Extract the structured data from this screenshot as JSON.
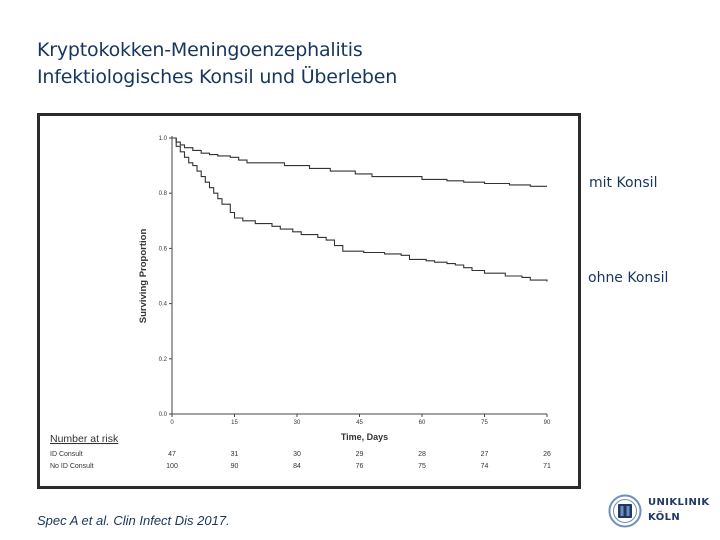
{
  "slide": {
    "title_line1": "Kryptokokken-Meningoenzephalitis",
    "title_line2": "Infektiologisches Konsil und Überleben",
    "label_with_consult": "mit Konsil",
    "label_without_consult": "ohne Konsil",
    "citation": "Spec A et al. Clin Infect Dis 2017.",
    "logo": {
      "line1": "UNIKLINIK",
      "line2": "KÖLN",
      "colors": {
        "primary": "#1f3864",
        "secondary": "#6f8fb8"
      }
    }
  },
  "chart_data": {
    "type": "line",
    "xlabel": "Time, Days",
    "ylabel": "Surviving Proportion",
    "xlim": [
      0,
      90
    ],
    "ylim": [
      0,
      1.0
    ],
    "x_ticks": [
      "0",
      "15",
      "30",
      "45",
      "60",
      "75",
      "90"
    ],
    "y_ticks": [
      "0.0",
      "0.2",
      "0.4",
      "0.6",
      "0.8",
      "1.0"
    ],
    "grid": false,
    "series": [
      {
        "name": "ID Consult",
        "color": "#333333",
        "step": true,
        "x": [
          0,
          1,
          2,
          3,
          5,
          7,
          9,
          11,
          14,
          16,
          18,
          22,
          27,
          33,
          38,
          44,
          48,
          54,
          60,
          66,
          70,
          75,
          81,
          86,
          90
        ],
        "y": [
          1.0,
          0.985,
          0.975,
          0.965,
          0.955,
          0.945,
          0.94,
          0.935,
          0.93,
          0.92,
          0.91,
          0.91,
          0.9,
          0.89,
          0.88,
          0.87,
          0.86,
          0.86,
          0.85,
          0.845,
          0.84,
          0.835,
          0.83,
          0.825,
          0.825
        ]
      },
      {
        "name": "No ID Consult",
        "color": "#333333",
        "step": true,
        "x": [
          0,
          1,
          2,
          3,
          4,
          5,
          6,
          7,
          8,
          9,
          10,
          11,
          12,
          14,
          15,
          17,
          20,
          24,
          26,
          29,
          31,
          35,
          37,
          39,
          41,
          46,
          51,
          55,
          57,
          61,
          63,
          66,
          68,
          70,
          72,
          75,
          80,
          84,
          86,
          90
        ],
        "y": [
          1.0,
          0.97,
          0.95,
          0.93,
          0.91,
          0.9,
          0.88,
          0.86,
          0.84,
          0.82,
          0.8,
          0.78,
          0.76,
          0.73,
          0.71,
          0.7,
          0.69,
          0.68,
          0.67,
          0.66,
          0.65,
          0.64,
          0.63,
          0.61,
          0.59,
          0.585,
          0.58,
          0.575,
          0.56,
          0.555,
          0.55,
          0.545,
          0.54,
          0.53,
          0.52,
          0.51,
          0.5,
          0.495,
          0.485,
          0.48
        ]
      }
    ],
    "risk_table": {
      "title": "Number at risk",
      "rows": [
        {
          "label": "ID Consult",
          "values": [
            "47",
            "31",
            "30",
            "29",
            "28",
            "27",
            "26"
          ]
        },
        {
          "label": "No ID Consult",
          "values": [
            "100",
            "90",
            "84",
            "76",
            "75",
            "74",
            "71"
          ]
        }
      ]
    }
  }
}
